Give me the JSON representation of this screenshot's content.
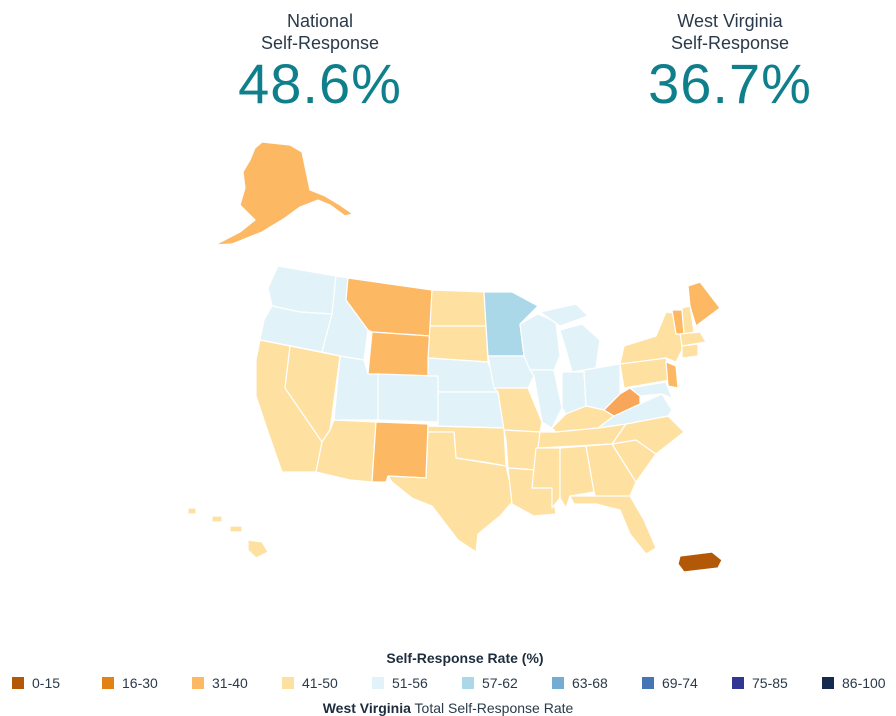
{
  "national": {
    "label": "National\nSelf-Response",
    "value": "48.6%"
  },
  "state": {
    "label": "West Virginia\nSelf-Response",
    "value": "36.7%"
  },
  "legend": {
    "title": "Self-Response Rate (%)",
    "bins": [
      {
        "label": "0-15",
        "color": "#b35806"
      },
      {
        "label": "16-30",
        "color": "#e08214"
      },
      {
        "label": "31-40",
        "color": "#fdb863"
      },
      {
        "label": "41-50",
        "color": "#fee0a0"
      },
      {
        "label": "51-56",
        "color": "#e2f2f9"
      },
      {
        "label": "57-62",
        "color": "#aad8e8"
      },
      {
        "label": "63-68",
        "color": "#74add1"
      },
      {
        "label": "69-74",
        "color": "#4575b4"
      },
      {
        "label": "75-85",
        "color": "#313695"
      },
      {
        "label": "86-100",
        "color": "#152a4e"
      }
    ]
  },
  "footer": {
    "state_name": "West Virginia",
    "text": " Total Self-Response Rate"
  }
}
